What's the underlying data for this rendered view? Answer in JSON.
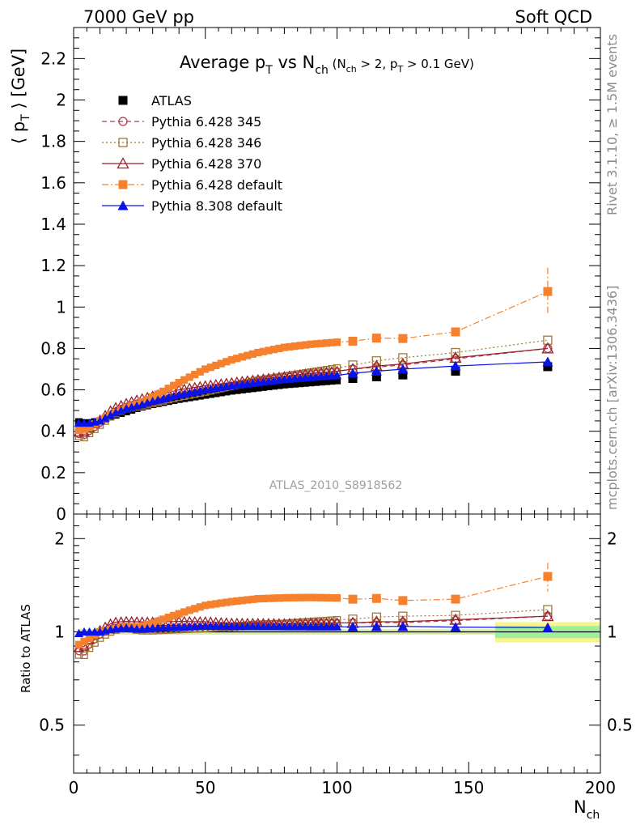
{
  "header": {
    "left": "7000 GeV pp",
    "right": "Soft QCD"
  },
  "side_labels": {
    "rivet": "Rivet 3.1.10, ≥ 1.5M events",
    "mcplots": "mcplots.cern.ch [arXiv:1306.3436]"
  },
  "analysis_id": "ATLAS_2010_S8918562",
  "title": {
    "main": "Average p",
    "main_sub": "T",
    "vs": " vs N",
    "vs_sub": "ch",
    "cut_open": " (N",
    "cut_sub1": "ch",
    "cut_mid": " > 2, p",
    "cut_sub2": "T",
    "cut_close": " > 0.1 GeV)"
  },
  "y_label": {
    "open": "⟨ p",
    "sub": "T",
    "close": " ⟩  [GeV]"
  },
  "ratio_label": "Ratio to ATLAS",
  "x_label": {
    "main": "N",
    "sub": "ch"
  },
  "chart_data": {
    "type": "scatter",
    "xlim": [
      0,
      200
    ],
    "ylim": [
      0,
      2.35
    ],
    "ratio_ylim": [
      0.35,
      2.4
    ],
    "ratio_scale": "log",
    "x_ticks": [
      0,
      50,
      100,
      150,
      200
    ],
    "y_ticks": [
      0,
      0.2,
      0.4,
      0.6,
      0.8,
      1,
      1.2,
      1.4,
      1.6,
      1.8,
      2,
      2.2
    ],
    "y_tick_labels": [
      "0",
      "0.2",
      "0.4",
      "0.6",
      "0.8",
      "1",
      "1.2",
      "1.4",
      "1.6",
      "1.8",
      "2",
      "2.2"
    ],
    "ratio_ticks": [
      0.5,
      1,
      2
    ],
    "ratio_tick_labels": [
      "0.5",
      "1",
      "2"
    ],
    "legend_position": "top-left",
    "atlas_band": {
      "yellow": 0.075,
      "green": 0.045
    },
    "series": [
      {
        "name": "ATLAS",
        "color": "#000000",
        "marker": "square-filled",
        "line": "none",
        "x": [
          2,
          4,
          6,
          8,
          10,
          15,
          20,
          25,
          30,
          40,
          50,
          60,
          70,
          80,
          90,
          100,
          106,
          115,
          125,
          145,
          180
        ],
        "y": [
          0.445,
          0.44,
          0.44,
          0.445,
          0.45,
          0.475,
          0.495,
          0.515,
          0.53,
          0.555,
          0.575,
          0.595,
          0.61,
          0.625,
          0.635,
          0.645,
          0.655,
          0.663,
          0.672,
          0.69,
          0.712
        ]
      },
      {
        "name": "Pythia 6.428 345",
        "color": "#b03a4a",
        "marker": "circle-open",
        "line": "dashed",
        "x": [
          2,
          4,
          6,
          8,
          10,
          15,
          20,
          25,
          30,
          40,
          50,
          60,
          70,
          80,
          90,
          100,
          106,
          115,
          125,
          145,
          180
        ],
        "y": [
          0.385,
          0.38,
          0.4,
          0.42,
          0.44,
          0.49,
          0.515,
          0.525,
          0.54,
          0.565,
          0.59,
          0.615,
          0.64,
          0.66,
          0.675,
          0.69,
          0.7,
          0.71,
          0.72,
          0.75,
          0.8
        ]
      },
      {
        "name": "Pythia 6.428 346",
        "color": "#a07838",
        "marker": "square-open",
        "line": "dotted",
        "x": [
          2,
          4,
          6,
          8,
          10,
          15,
          20,
          25,
          30,
          40,
          50,
          60,
          70,
          80,
          90,
          100,
          106,
          115,
          125,
          145,
          180
        ],
        "y": [
          0.375,
          0.37,
          0.39,
          0.41,
          0.43,
          0.48,
          0.51,
          0.52,
          0.535,
          0.565,
          0.59,
          0.62,
          0.645,
          0.665,
          0.685,
          0.705,
          0.72,
          0.74,
          0.755,
          0.78,
          0.84
        ]
      },
      {
        "name": "Pythia 6.428 370",
        "color": "#9a1f2c",
        "marker": "triangle-open",
        "line": "solid",
        "x": [
          2,
          4,
          6,
          8,
          10,
          15,
          20,
          25,
          30,
          40,
          50,
          60,
          70,
          80,
          90,
          100,
          106,
          115,
          125,
          145,
          180
        ],
        "y": [
          0.395,
          0.395,
          0.415,
          0.435,
          0.455,
          0.51,
          0.535,
          0.555,
          0.57,
          0.6,
          0.62,
          0.635,
          0.65,
          0.665,
          0.68,
          0.69,
          0.7,
          0.715,
          0.725,
          0.755,
          0.8
        ]
      },
      {
        "name": "Pythia 6.428 default",
        "color": "#f5812e",
        "marker": "square-filled",
        "line": "dashdot",
        "x": [
          2,
          4,
          6,
          8,
          10,
          15,
          20,
          25,
          30,
          40,
          50,
          60,
          70,
          80,
          90,
          100,
          106,
          115,
          125,
          145,
          180
        ],
        "y": [
          0.405,
          0.41,
          0.42,
          0.435,
          0.45,
          0.485,
          0.515,
          0.535,
          0.565,
          0.635,
          0.7,
          0.745,
          0.78,
          0.805,
          0.82,
          0.83,
          0.835,
          0.85,
          0.848,
          0.88,
          1.075
        ],
        "err": [
          0,
          0,
          0,
          0,
          0,
          0,
          0,
          0,
          0,
          0,
          0,
          0,
          0,
          0,
          0,
          0,
          0,
          0,
          0,
          0,
          0.115
        ]
      },
      {
        "name": "Pythia 8.308 default",
        "color": "#0a14e6",
        "marker": "triangle-filled",
        "line": "solid",
        "x": [
          2,
          4,
          6,
          8,
          10,
          15,
          20,
          25,
          30,
          40,
          50,
          60,
          70,
          80,
          90,
          100,
          106,
          115,
          125,
          145,
          180
        ],
        "y": [
          0.44,
          0.44,
          0.44,
          0.445,
          0.45,
          0.485,
          0.51,
          0.525,
          0.545,
          0.575,
          0.6,
          0.62,
          0.635,
          0.65,
          0.66,
          0.67,
          0.68,
          0.69,
          0.7,
          0.715,
          0.735
        ]
      }
    ]
  }
}
